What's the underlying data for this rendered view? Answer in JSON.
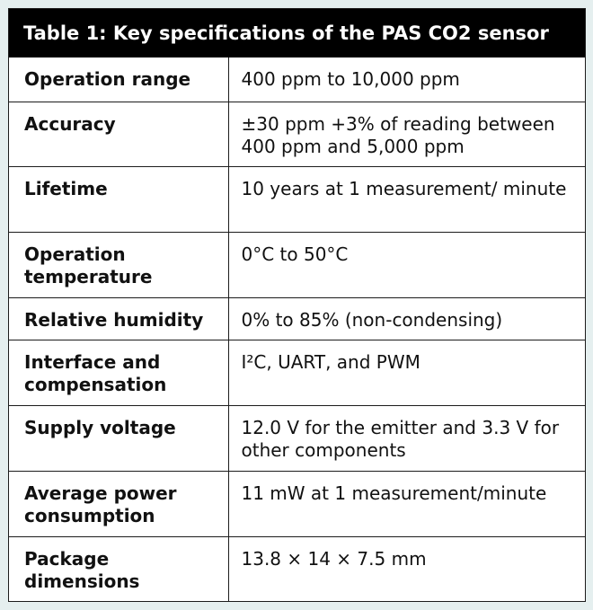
{
  "table": {
    "title": "Table 1: Key specifications of the PAS CO2 sensor",
    "rows": [
      {
        "label": "Operation range",
        "value": "400 ppm to 10,000 ppm"
      },
      {
        "label": "Accuracy",
        "value": "±30 ppm +3% of reading between 400 ppm and 5,000 ppm"
      },
      {
        "label": "Lifetime",
        "value": "10 years at 1 measurement/ minute"
      },
      {
        "label": "Operation temperature",
        "value": "0°C to 50°C"
      },
      {
        "label": "Relative humidity",
        "value": "0% to 85% (non-condensing)"
      },
      {
        "label": "Interface and compensation",
        "value": "I²C, UART, and PWM"
      },
      {
        "label": "Supply voltage",
        "value": "12.0 V for the emitter and 3.3 V for other components"
      },
      {
        "label": "Average power consumption",
        "value": "11 mW at 1 measurement/minute"
      },
      {
        "label": "Package dimensions",
        "value": "13.8 × 14 × 7.5 mm"
      }
    ]
  }
}
